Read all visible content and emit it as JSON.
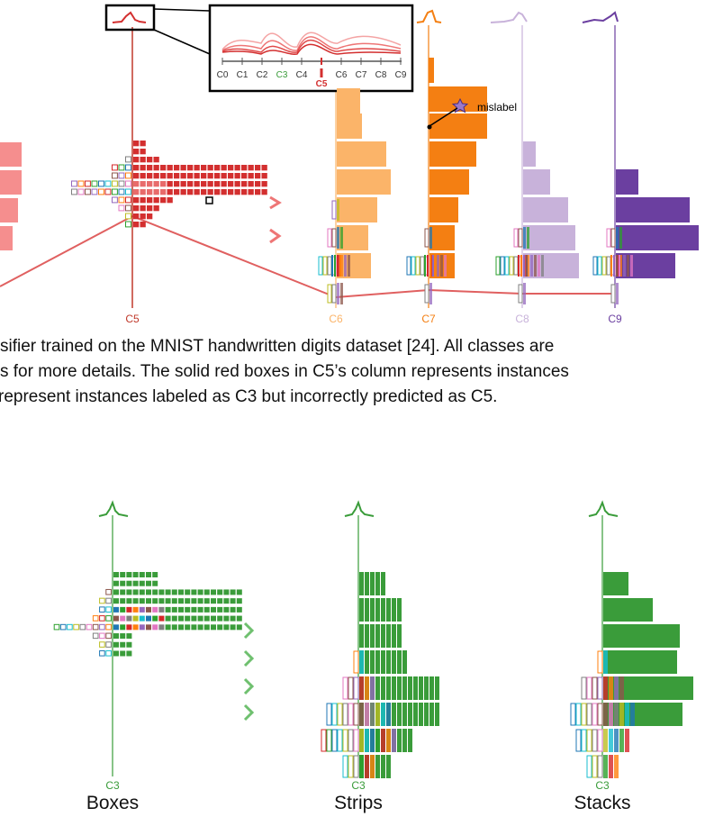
{
  "top_figure": {
    "inset_ticks": [
      "C0",
      "C1",
      "C2",
      "C3",
      "C4",
      "C5",
      "C6",
      "C7",
      "C8",
      "C9"
    ],
    "inset_selected": "C5",
    "annotation": "mislabel",
    "columns": [
      {
        "label": "C5",
        "color": "#d32f2f"
      },
      {
        "label": "C6",
        "color": "#fbb469"
      },
      {
        "label": "C7",
        "color": "#f47f12"
      },
      {
        "label": "C8",
        "color": "#c8b2da"
      },
      {
        "label": "C9",
        "color": "#6b3fa0"
      }
    ]
  },
  "caption": {
    "line1": "sifier trained on the MNIST handwritten digits dataset [24].  All classes are",
    "line2": "s for more details. The solid red boxes in C5’s column represents instances",
    "line3": "represent instances labeled as C3 but incorrectly predicted as C5."
  },
  "bottom_figure": {
    "column_label": "C3",
    "color": "#3a9c3a",
    "variants": [
      "Boxes",
      "Strips",
      "Stacks"
    ]
  }
}
